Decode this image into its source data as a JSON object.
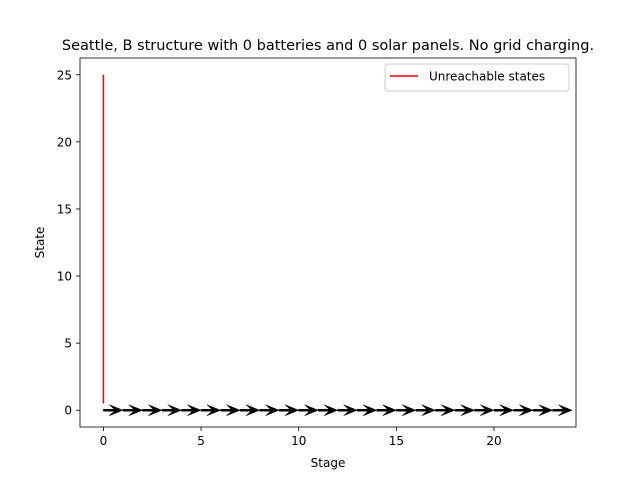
{
  "chart_data": {
    "type": "line",
    "title": "Seattle, B structure with 0 batteries and 0 solar panels. No grid charging.",
    "xlabel": "Stage",
    "ylabel": "State",
    "xlim": [
      -1.2,
      24.2
    ],
    "ylim": [
      -1.25,
      26.25
    ],
    "x_ticks": [
      0,
      5,
      10,
      15,
      20
    ],
    "y_ticks": [
      0,
      5,
      10,
      15,
      20,
      25
    ],
    "grid": false,
    "legend": {
      "position": "top-right",
      "entries": [
        {
          "label": "Unreachable states",
          "color": "#ff0000"
        }
      ]
    },
    "series": [
      {
        "name": "Unreachable states",
        "color": "#ff0000",
        "segments": [
          {
            "x": [
              0,
              0
            ],
            "y": [
              0.5,
              25
            ]
          }
        ]
      }
    ],
    "arrows": {
      "color": "#000000",
      "y": 0,
      "dx": 1,
      "dy": 0,
      "x": [
        0,
        1,
        2,
        3,
        4,
        5,
        6,
        7,
        8,
        9,
        10,
        11,
        12,
        13,
        14,
        15,
        16,
        17,
        18,
        19,
        20,
        21,
        22,
        23
      ]
    }
  }
}
